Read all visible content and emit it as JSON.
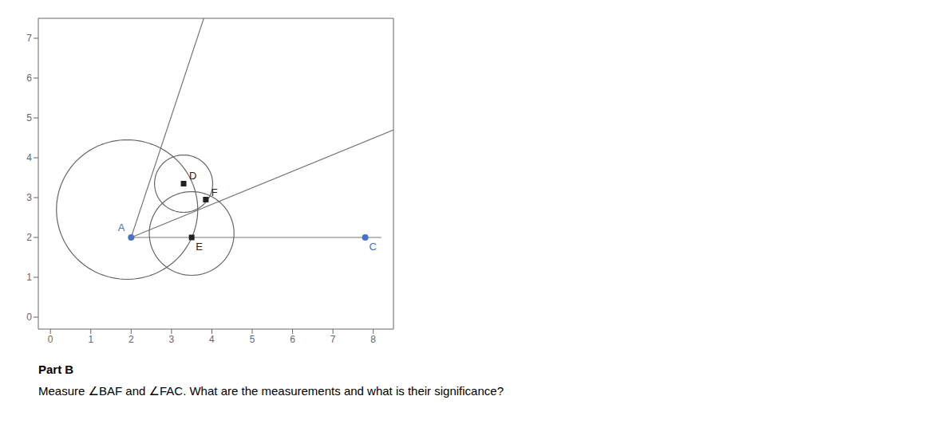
{
  "chart_data": {
    "type": "scatter",
    "xlim": [
      -0.3,
      8.5
    ],
    "ylim": [
      -0.3,
      7.5
    ],
    "xticks": [
      0,
      1,
      2,
      3,
      4,
      5,
      6,
      7,
      8
    ],
    "yticks": [
      0,
      1,
      2,
      3,
      4,
      5,
      6,
      7
    ],
    "grid": false,
    "series": [
      {
        "type": "line",
        "color": "#777777",
        "x": [
          2.0,
          8.2
        ],
        "values": [
          2.0,
          2.0
        ]
      },
      {
        "type": "line",
        "color": "#777777",
        "x": [
          2.0,
          3.8
        ],
        "values": [
          2.0,
          7.5
        ]
      },
      {
        "type": "line",
        "color": "#777777",
        "x": [
          2.0,
          8.5
        ],
        "values": [
          2.0,
          4.7
        ]
      },
      {
        "type": "circle",
        "color": "#666666",
        "center": [
          1.9,
          2.7
        ],
        "radius": 1.75
      },
      {
        "type": "circle",
        "color": "#666666",
        "center": [
          3.5,
          2.1
        ],
        "radius": 1.05
      },
      {
        "type": "circle",
        "color": "#666666",
        "center": [
          3.3,
          3.35
        ],
        "radius": 0.72
      },
      {
        "type": "scatter",
        "name": "A",
        "marker": "circle",
        "color": "#4472c4",
        "x": [
          2.0
        ],
        "values": [
          2.0
        ]
      },
      {
        "type": "scatter",
        "name": "C",
        "marker": "circle",
        "color": "#4472c4",
        "x": [
          7.8
        ],
        "values": [
          2.0
        ]
      },
      {
        "type": "scatter",
        "name": "D",
        "marker": "square",
        "color": "#222222",
        "x": [
          3.3
        ],
        "values": [
          3.35
        ]
      },
      {
        "type": "scatter",
        "name": "E",
        "marker": "square",
        "color": "#222222",
        "x": [
          3.5
        ],
        "values": [
          2.0
        ]
      },
      {
        "type": "scatter",
        "name": "F",
        "marker": "square",
        "color": "#222222",
        "x": [
          3.85
        ],
        "values": [
          2.95
        ]
      }
    ],
    "annotations": [
      "Part B",
      "Measure ∠BAF and ∠FAC. What are the measurements and what is their significance?"
    ]
  }
}
